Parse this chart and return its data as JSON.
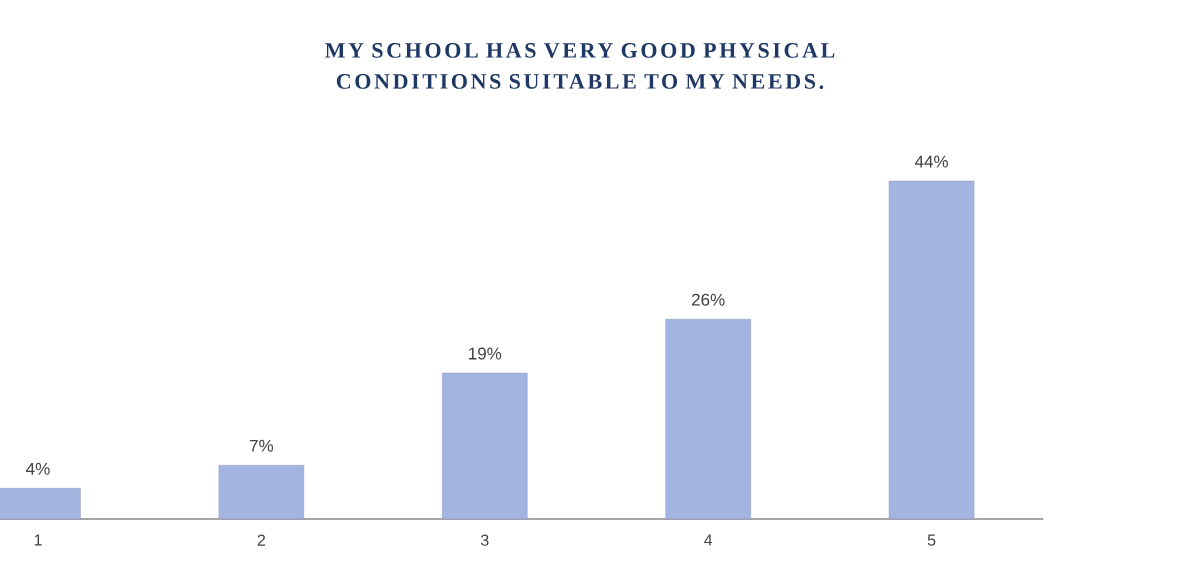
{
  "chart_data": {
    "type": "bar",
    "title": "MY SCHOOL HAS VERY GOOD PHYSICAL CONDITIONS SUITABLE TO MY NEEDS.",
    "categories": [
      "1",
      "2",
      "3",
      "4",
      "5"
    ],
    "values": [
      4,
      7,
      19,
      26,
      44
    ],
    "value_labels": [
      "4%",
      "7%",
      "19%",
      "26%",
      "44%"
    ],
    "color": "#a4b4e0"
  }
}
